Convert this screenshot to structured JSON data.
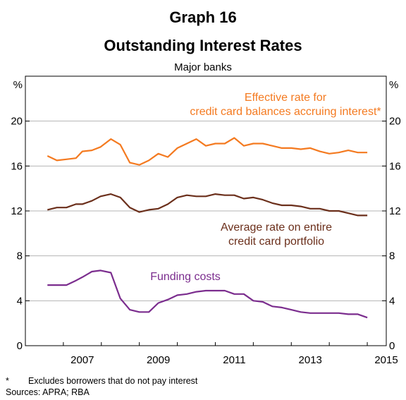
{
  "header": {
    "title_line1": "Graph 16",
    "title_line2": "Outstanding Interest Rates",
    "subtitle": "Major banks"
  },
  "footer": {
    "note_marker": "*",
    "note_text": "Excludes borrowers that do not pay interest",
    "sources": "Sources:   APRA; RBA"
  },
  "chart_data": {
    "type": "line",
    "title": "Outstanding Interest Rates",
    "subtitle": "Major banks",
    "y_unit": "%",
    "ylim": [
      0,
      24
    ],
    "yticks": [
      0,
      4,
      8,
      12,
      16,
      20
    ],
    "xlim": [
      2006,
      2015.5
    ],
    "xticks": [
      2007,
      2009,
      2011,
      2013,
      2015
    ],
    "xtick_labels": [
      "2007",
      "2009",
      "2011",
      "2013",
      "2015"
    ],
    "grid": true,
    "series": [
      {
        "name": "Effective rate for credit card balances accruing interest*",
        "label_lines": [
          "Effective rate for",
          "credit card balances accruing interest*"
        ],
        "color": "#f47a20",
        "x": [
          2006.58,
          2006.83,
          2007.08,
          2007.33,
          2007.5,
          2007.75,
          2007.98,
          2008.25,
          2008.5,
          2008.75,
          2009.0,
          2009.25,
          2009.5,
          2009.75,
          2010.0,
          2010.25,
          2010.5,
          2010.75,
          2011.0,
          2011.25,
          2011.5,
          2011.75,
          2012.0,
          2012.25,
          2012.5,
          2012.75,
          2013.0,
          2013.25,
          2013.5,
          2013.75,
          2014.0,
          2014.25,
          2014.5,
          2014.75,
          2015.0
        ],
        "y": [
          16.9,
          16.5,
          16.6,
          16.7,
          17.3,
          17.4,
          17.7,
          18.4,
          17.9,
          16.3,
          16.1,
          16.5,
          17.1,
          16.8,
          17.6,
          18.0,
          18.4,
          17.8,
          18.0,
          18.0,
          18.5,
          17.8,
          18.0,
          18.0,
          17.8,
          17.6,
          17.6,
          17.5,
          17.6,
          17.3,
          17.1,
          17.2,
          17.4,
          17.2,
          17.2
        ]
      },
      {
        "name": "Average rate on entire credit card portfolio",
        "label_lines": [
          "Average rate on entire",
          "credit card portfolio"
        ],
        "color": "#6b2f1b",
        "x": [
          2006.58,
          2006.83,
          2007.08,
          2007.33,
          2007.5,
          2007.75,
          2007.98,
          2008.25,
          2008.5,
          2008.75,
          2009.0,
          2009.25,
          2009.5,
          2009.75,
          2010.0,
          2010.25,
          2010.5,
          2010.75,
          2011.0,
          2011.25,
          2011.5,
          2011.75,
          2012.0,
          2012.25,
          2012.5,
          2012.75,
          2013.0,
          2013.25,
          2013.5,
          2013.75,
          2014.0,
          2014.25,
          2014.5,
          2014.75,
          2015.0
        ],
        "y": [
          12.1,
          12.3,
          12.3,
          12.6,
          12.6,
          12.9,
          13.3,
          13.5,
          13.2,
          12.3,
          11.9,
          12.1,
          12.2,
          12.6,
          13.2,
          13.4,
          13.3,
          13.3,
          13.5,
          13.4,
          13.4,
          13.1,
          13.2,
          13.0,
          12.7,
          12.5,
          12.5,
          12.4,
          12.2,
          12.2,
          12.0,
          12.0,
          11.8,
          11.6,
          11.6
        ]
      },
      {
        "name": "Funding costs",
        "label_lines": [
          "Funding costs"
        ],
        "color": "#7b2d8e",
        "x": [
          2006.58,
          2006.83,
          2007.08,
          2007.33,
          2007.5,
          2007.75,
          2007.98,
          2008.25,
          2008.5,
          2008.75,
          2009.0,
          2009.25,
          2009.5,
          2009.75,
          2010.0,
          2010.25,
          2010.5,
          2010.75,
          2011.0,
          2011.25,
          2011.5,
          2011.75,
          2012.0,
          2012.25,
          2012.5,
          2012.75,
          2013.0,
          2013.25,
          2013.5,
          2013.75,
          2014.0,
          2014.25,
          2014.5,
          2014.75,
          2015.0
        ],
        "y": [
          5.4,
          5.4,
          5.4,
          5.8,
          6.1,
          6.6,
          6.7,
          6.5,
          4.2,
          3.2,
          3.0,
          3.0,
          3.8,
          4.1,
          4.5,
          4.6,
          4.8,
          4.9,
          4.9,
          4.9,
          4.6,
          4.6,
          4.0,
          3.9,
          3.5,
          3.4,
          3.2,
          3.0,
          2.9,
          2.9,
          2.9,
          2.9,
          2.8,
          2.8,
          2.5
        ]
      }
    ]
  }
}
